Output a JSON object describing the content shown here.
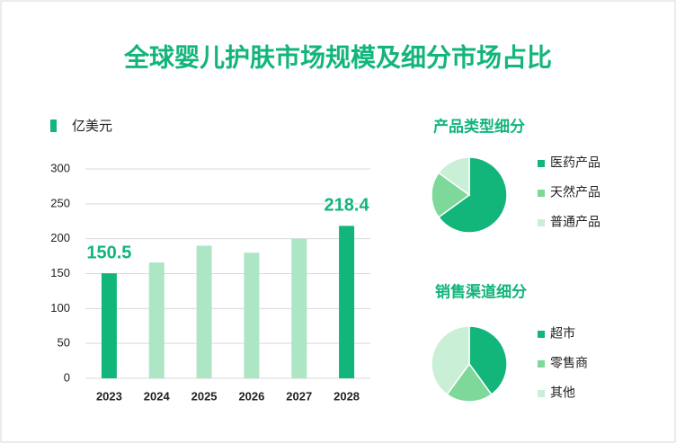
{
  "title": "全球婴儿护肤市场规模及细分市场占比",
  "chart_data": [
    {
      "type": "bar",
      "categories": [
        "2023",
        "2024",
        "2025",
        "2026",
        "2027",
        "2028"
      ],
      "series": [
        {
          "name": "亿美元",
          "color": "#12b57a",
          "values": [
            150.5,
            166,
            190,
            180,
            200,
            218.4
          ],
          "colors": [
            "#12b57a",
            "#ade6c4",
            "#ade6c4",
            "#ade6c4",
            "#ade6c4",
            "#12b57a"
          ]
        }
      ],
      "ylim": [
        0,
        300
      ],
      "yticks": [
        0,
        50,
        100,
        150,
        200,
        250,
        300
      ],
      "grid": true
    },
    {
      "type": "pie",
      "title": "产品类型细分",
      "categories": [
        "医药产品",
        "天然产品",
        "普通产品"
      ],
      "values": [
        65,
        20,
        15
      ],
      "colors": [
        "#12b57a",
        "#7dd89a",
        "#c9efd6"
      ]
    },
    {
      "type": "pie",
      "title": "销售渠道细分",
      "categories": [
        "超市",
        "零售商",
        "其他"
      ],
      "values": [
        40,
        20,
        40
      ],
      "colors": [
        "#12b57a",
        "#7dd89a",
        "#c9efd6"
      ]
    }
  ]
}
